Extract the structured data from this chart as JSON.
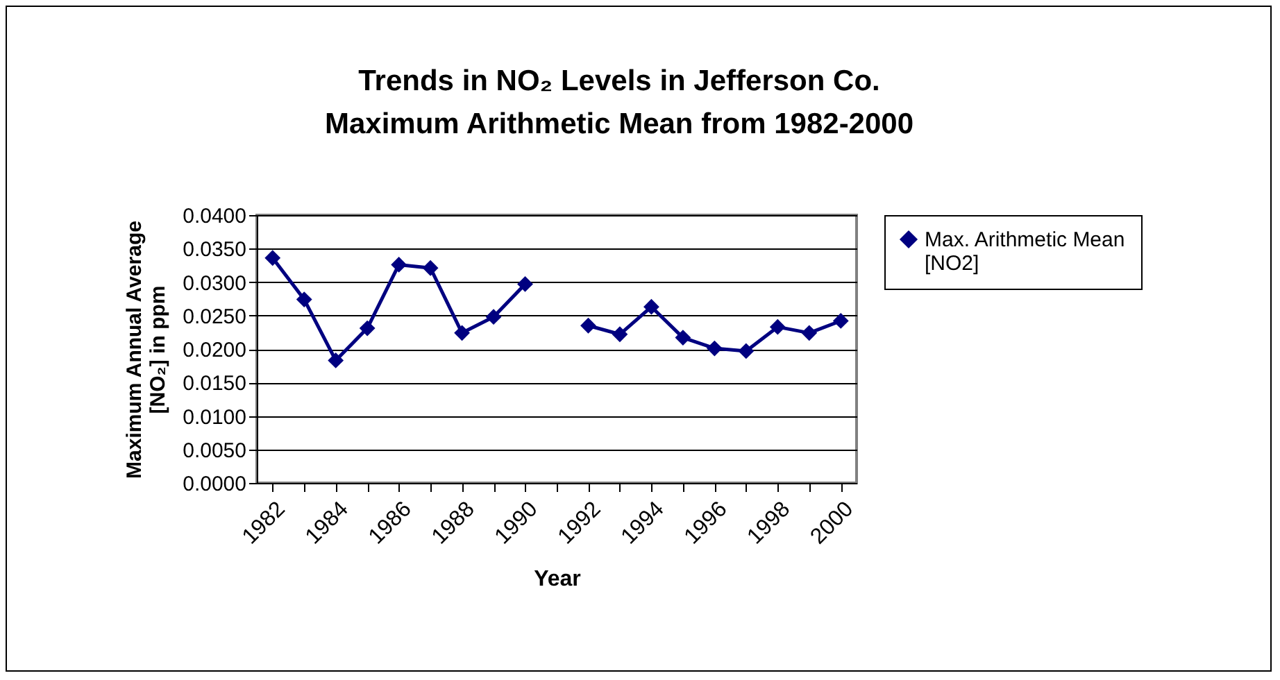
{
  "chart_data": {
    "type": "line",
    "title": "Trends in NO₂ Levels in Jefferson Co.",
    "subtitle": "Maximum Arithmetic Mean from 1982-2000",
    "xlabel": "Year",
    "ylabel": "Maximum Annual Average\n[NO₂] in ppm",
    "categories": [
      "1982",
      null,
      "1984",
      null,
      "1986",
      null,
      "1988",
      null,
      "1990",
      null,
      "1992",
      null,
      "1994",
      null,
      "1996",
      null,
      "1998",
      null,
      "2000"
    ],
    "series": [
      {
        "name": "Max. Arithmetic Mean [NO2]",
        "color": "#000080",
        "values": [
          0.0336,
          0.0274,
          0.0183,
          0.0231,
          0.0326,
          0.0321,
          0.0224,
          0.0248,
          0.0297,
          null,
          0.0235,
          0.0222,
          0.0263,
          0.0217,
          0.0201,
          0.0197,
          0.0233,
          0.0224,
          0.0242
        ]
      }
    ],
    "ylim": [
      0,
      0.04
    ],
    "yticks": [
      {
        "value": 0,
        "label": "0.0000"
      },
      {
        "value": 0.005,
        "label": "0.0050"
      },
      {
        "value": 0.01,
        "label": "0.0100"
      },
      {
        "value": 0.015,
        "label": "0.0150"
      },
      {
        "value": 0.02,
        "label": "0.0200"
      },
      {
        "value": 0.025,
        "label": "0.0250"
      },
      {
        "value": 0.03,
        "label": "0.0300"
      },
      {
        "value": 0.035,
        "label": "0.0350"
      },
      {
        "value": 0.04,
        "label": "0.0400"
      }
    ],
    "grid": "y",
    "legend": "right",
    "marker": "diamond",
    "line_style": "solid"
  }
}
